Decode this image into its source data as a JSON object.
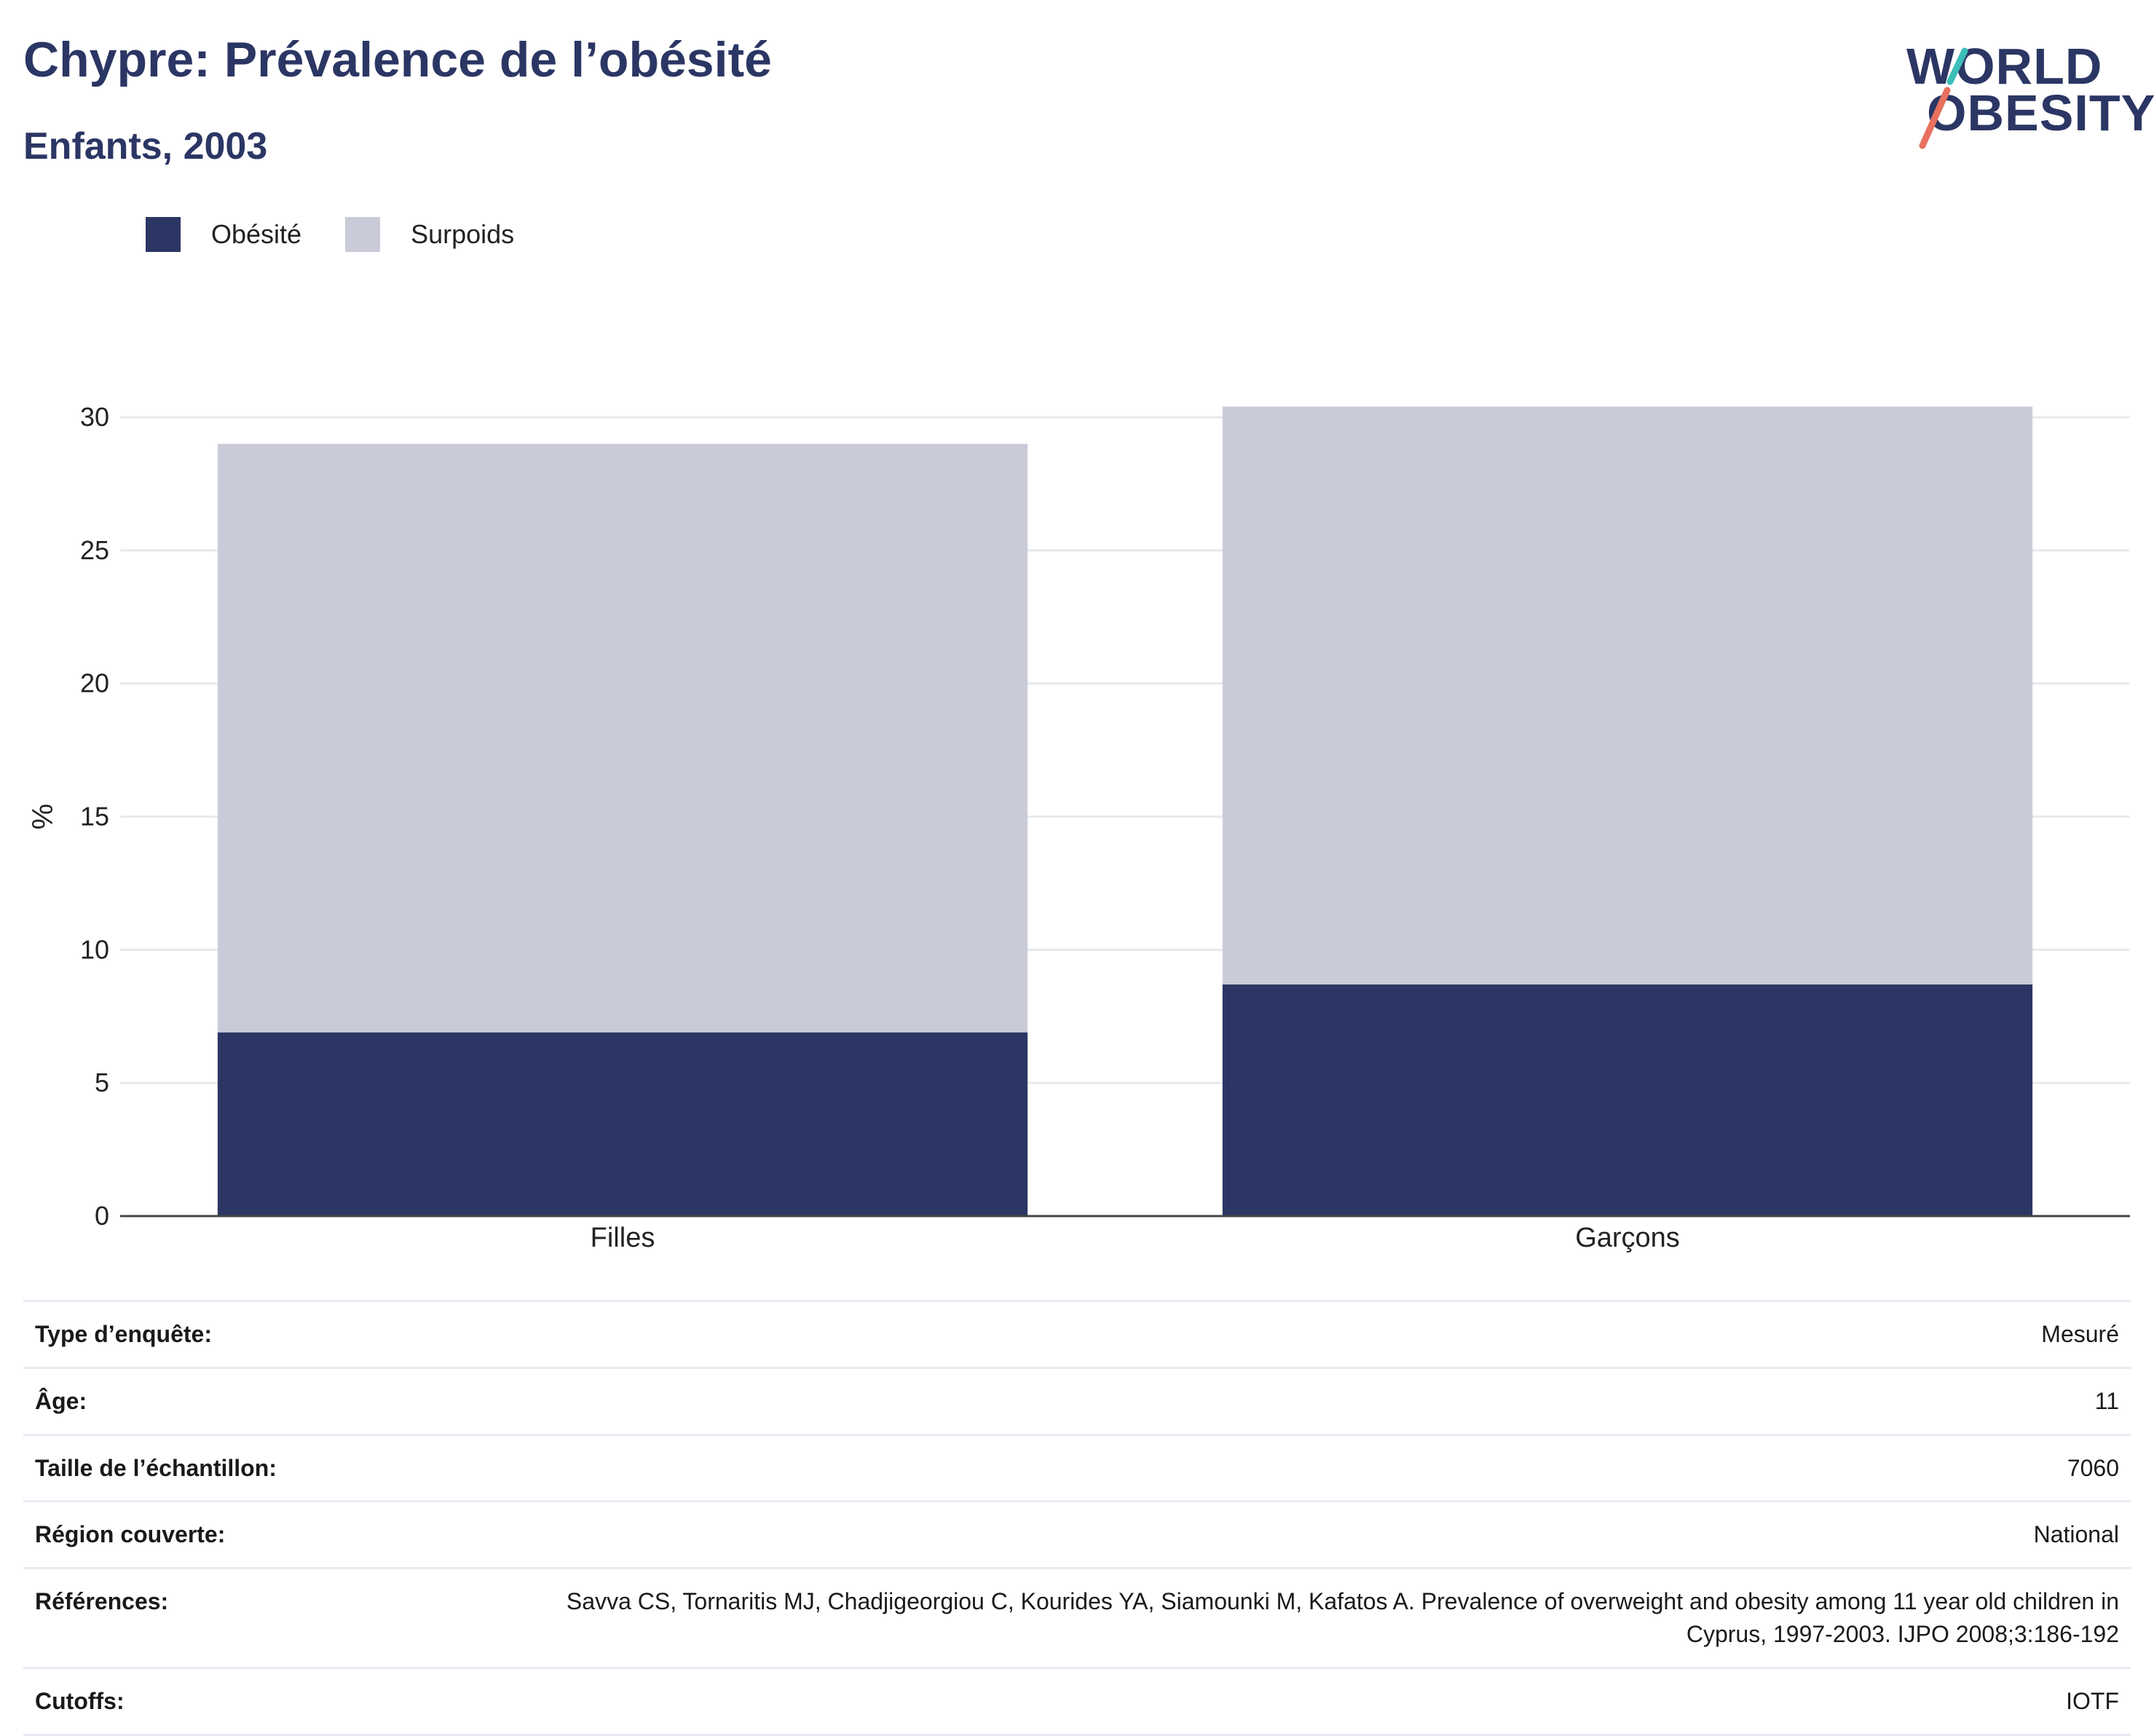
{
  "header": {
    "title": "Chypre: Prévalence de l’obésité",
    "subtitle": "Enfants, 2003"
  },
  "logo": {
    "line1": "WORLD",
    "line2": "OBESITY",
    "colors": {
      "navy": "#2b3664",
      "teal": "#3bbfb8",
      "coral": "#e8705f"
    }
  },
  "chart_data": {
    "type": "bar",
    "stacked": true,
    "categories": [
      "Filles",
      "Garçons"
    ],
    "series": [
      {
        "name": "Obésité",
        "values": [
          6.9,
          8.7
        ],
        "color": "#2b3664"
      },
      {
        "name": "Surpoids",
        "values": [
          22.1,
          21.7
        ],
        "color": "#c9ccd8"
      }
    ],
    "xlabel": "",
    "ylabel": "%",
    "ylim": [
      0,
      30
    ],
    "yticks": [
      0,
      5,
      10,
      15,
      20,
      25,
      30
    ],
    "grid": true,
    "legend": "top-left"
  },
  "meta": [
    {
      "label": "Type d’enquête:",
      "value": "Mesuré"
    },
    {
      "label": "Âge:",
      "value": "11"
    },
    {
      "label": "Taille de l’échantillon:",
      "value": "7060"
    },
    {
      "label": "Région couverte:",
      "value": "National"
    },
    {
      "label": "Références:",
      "value": "Savva CS, Tornaritis MJ, Chadjigeorgiou C, Kourides YA, Siamounki M, Kafatos A. Prevalence of overweight and obesity among 11 year old children in Cyprus, 1997-2003. IJPO 2008;3:186-192"
    },
    {
      "label": "Cutoffs:",
      "value": "IOTF"
    }
  ]
}
